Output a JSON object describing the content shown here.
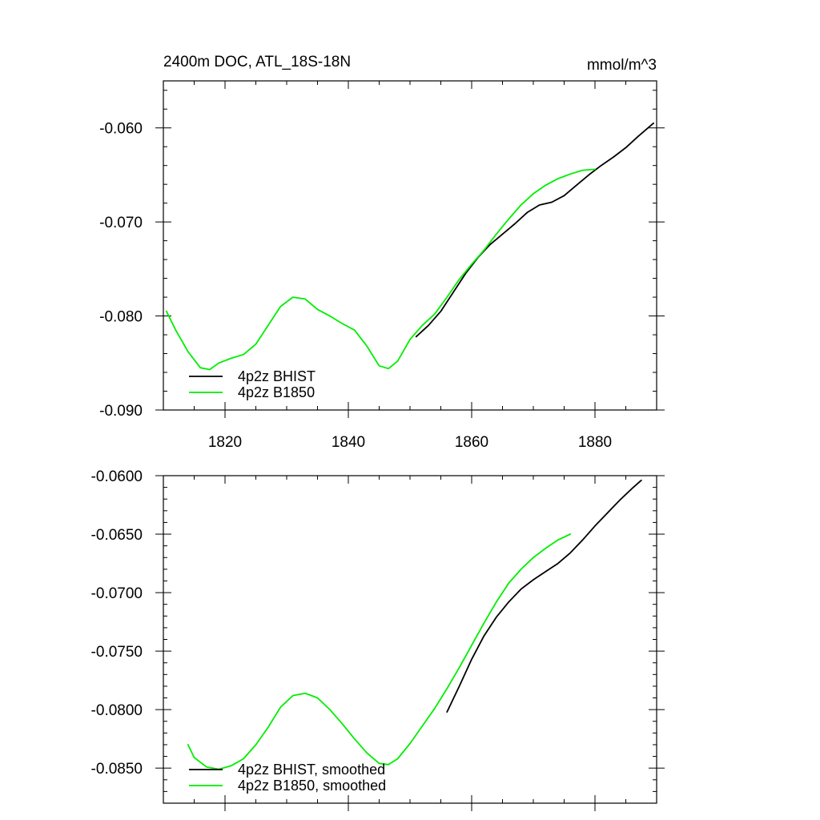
{
  "title_left": "2400m DOC, ATL_18S-18N",
  "title_right": "mmol/m^3",
  "colors": {
    "bhist": "#000000",
    "b1850": "#00ee00",
    "axis": "#000000"
  },
  "chart_data": [
    {
      "type": "line",
      "title": "2400m DOC, ATL_18S-18N",
      "units": "mmol/m^3",
      "xlim": [
        1810,
        1890
      ],
      "ylim": [
        -0.09,
        -0.055
      ],
      "x_ticks": [
        1820,
        1840,
        1860,
        1880
      ],
      "x_tick_labels": [
        "1820",
        "1840",
        "1860",
        "1880"
      ],
      "y_ticks": [
        -0.06,
        -0.07,
        -0.08,
        -0.09
      ],
      "y_tick_labels": [
        "-0.060",
        "-0.070",
        "-0.080",
        "-0.090"
      ],
      "legend_position": "bottom-left",
      "series": [
        {
          "name": "4p2z BHIST",
          "color": "#000000",
          "x": [
            1851,
            1853,
            1855,
            1857,
            1859,
            1861,
            1863,
            1865,
            1867,
            1869,
            1871,
            1873,
            1875,
            1877,
            1879,
            1881,
            1883,
            1885,
            1887,
            1889.5
          ],
          "y": [
            -0.0822,
            -0.081,
            -0.0795,
            -0.0775,
            -0.0755,
            -0.0738,
            -0.0724,
            -0.0713,
            -0.0702,
            -0.069,
            -0.0682,
            -0.0679,
            -0.0672,
            -0.0661,
            -0.065,
            -0.064,
            -0.0631,
            -0.0621,
            -0.0609,
            -0.0595
          ]
        },
        {
          "name": "4p2z B1850",
          "color": "#00ee00",
          "x": [
            1810.5,
            1812,
            1814,
            1816,
            1817.5,
            1819,
            1821,
            1823,
            1825,
            1827,
            1829,
            1831,
            1833,
            1835,
            1837,
            1839,
            1841,
            1843,
            1845,
            1846.5,
            1848,
            1850,
            1852,
            1854,
            1856,
            1858,
            1860,
            1862,
            1864,
            1866,
            1868,
            1870,
            1872,
            1874,
            1876,
            1878,
            1880
          ],
          "y": [
            -0.0795,
            -0.0815,
            -0.0838,
            -0.0855,
            -0.0857,
            -0.085,
            -0.0845,
            -0.0841,
            -0.083,
            -0.081,
            -0.079,
            -0.078,
            -0.0782,
            -0.0793,
            -0.08,
            -0.0808,
            -0.0815,
            -0.0832,
            -0.0853,
            -0.0856,
            -0.0848,
            -0.0825,
            -0.081,
            -0.0798,
            -0.078,
            -0.0761,
            -0.0745,
            -0.073,
            -0.0713,
            -0.0697,
            -0.0682,
            -0.067,
            -0.0661,
            -0.0654,
            -0.0649,
            -0.0645,
            -0.0644
          ]
        }
      ]
    },
    {
      "type": "line",
      "xlim": [
        1810,
        1890
      ],
      "ylim": [
        -0.088,
        -0.06
      ],
      "x_ticks": [
        1820,
        1840,
        1860,
        1880
      ],
      "x_tick_labels": [
        "",
        "",
        "",
        ""
      ],
      "y_ticks": [
        -0.06,
        -0.065,
        -0.07,
        -0.075,
        -0.08,
        -0.085
      ],
      "y_tick_labels": [
        "-0.0600",
        "-0.0650",
        "-0.0700",
        "-0.0750",
        "-0.0800",
        "-0.0850"
      ],
      "legend_position": "bottom-left",
      "series": [
        {
          "name": "4p2z BHIST, smoothed",
          "color": "#000000",
          "x": [
            1856,
            1858,
            1860,
            1862,
            1864,
            1866,
            1868,
            1870,
            1872,
            1874,
            1876,
            1878,
            1880,
            1882,
            1884,
            1886,
            1887.5
          ],
          "y": [
            -0.0802,
            -0.078,
            -0.0757,
            -0.0737,
            -0.0721,
            -0.0708,
            -0.0697,
            -0.0689,
            -0.0682,
            -0.0675,
            -0.0666,
            -0.0655,
            -0.0643,
            -0.0632,
            -0.0621,
            -0.0611,
            -0.0604
          ]
        },
        {
          "name": "4p2z B1850, smoothed",
          "color": "#00ee00",
          "x": [
            1814,
            1815,
            1817,
            1819,
            1821,
            1823,
            1825,
            1827,
            1829,
            1831,
            1833,
            1835,
            1837,
            1839,
            1841,
            1843,
            1845,
            1846.5,
            1848,
            1850,
            1852,
            1854,
            1856,
            1858,
            1860,
            1862,
            1864,
            1866,
            1868,
            1870,
            1872,
            1874,
            1876
          ],
          "y": [
            -0.083,
            -0.0841,
            -0.0849,
            -0.0851,
            -0.0848,
            -0.0842,
            -0.083,
            -0.0815,
            -0.0798,
            -0.0788,
            -0.0786,
            -0.079,
            -0.08,
            -0.0812,
            -0.0825,
            -0.0837,
            -0.0846,
            -0.0847,
            -0.0842,
            -0.0829,
            -0.0814,
            -0.0799,
            -0.0782,
            -0.0764,
            -0.0745,
            -0.0726,
            -0.0708,
            -0.0692,
            -0.068,
            -0.067,
            -0.0662,
            -0.0655,
            -0.065
          ]
        }
      ]
    }
  ]
}
